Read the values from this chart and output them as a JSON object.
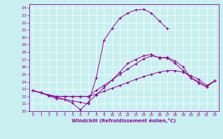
{
  "xlabel": "Windchill (Refroidissement éolien,°C)",
  "background_color": "#c8f0f0",
  "line_color": "#990099",
  "xlim": [
    -0.5,
    23.5
  ],
  "ylim": [
    10,
    24.5
  ],
  "xticks": [
    0,
    1,
    2,
    3,
    4,
    5,
    6,
    7,
    8,
    9,
    10,
    11,
    12,
    13,
    14,
    15,
    16,
    17,
    18,
    19,
    20,
    21,
    22,
    23
  ],
  "yticks": [
    10,
    11,
    12,
    13,
    14,
    15,
    16,
    17,
    18,
    19,
    20,
    21,
    22,
    23,
    24
  ],
  "s1_x": [
    0,
    1,
    2,
    3,
    4,
    5,
    6,
    7,
    8,
    9,
    10,
    11,
    12,
    13,
    14,
    15,
    16,
    17,
    18,
    19,
    20,
    21,
    22,
    23
  ],
  "s1_y": [
    12.8,
    12.5,
    12.1,
    11.7,
    11.6,
    11.1,
    10.2,
    11.2,
    12.2,
    13.2,
    14.2,
    15.3,
    16.5,
    17.0,
    17.5,
    17.7,
    17.2,
    17.3,
    16.8,
    16.0,
    14.5,
    14.0,
    13.3,
    14.1
  ],
  "s2_x": [
    0,
    1,
    2,
    3,
    4,
    5,
    6,
    7,
    8,
    9,
    10,
    11,
    12,
    13,
    14,
    15,
    16,
    17
  ],
  "s2_y": [
    12.8,
    12.5,
    12.1,
    11.9,
    11.6,
    11.4,
    11.2,
    11.0,
    14.5,
    19.6,
    21.2,
    22.6,
    23.3,
    23.7,
    23.8,
    23.3,
    22.2,
    21.2
  ],
  "s3_x": [
    0,
    1,
    2,
    3,
    4,
    5,
    6,
    7,
    8,
    9,
    10,
    11,
    12,
    13,
    14,
    15,
    16,
    17,
    18,
    19,
    20,
    21,
    22,
    23
  ],
  "s3_y": [
    12.8,
    12.5,
    12.2,
    12.0,
    12.0,
    12.0,
    12.0,
    12.0,
    12.8,
    13.5,
    14.2,
    15.0,
    15.7,
    16.4,
    17.1,
    17.5,
    17.3,
    17.2,
    16.5,
    15.5,
    14.5,
    13.8,
    13.3,
    14.1
  ],
  "s4_x": [
    0,
    1,
    2,
    3,
    4,
    5,
    6,
    7,
    8,
    9,
    10,
    11,
    12,
    13,
    14,
    15,
    16,
    17,
    18,
    19,
    20,
    21,
    22,
    23
  ],
  "s4_y": [
    12.8,
    12.5,
    12.2,
    12.0,
    12.0,
    12.0,
    12.0,
    12.0,
    12.3,
    12.7,
    13.1,
    13.5,
    13.9,
    14.3,
    14.7,
    15.0,
    15.3,
    15.5,
    15.5,
    15.3,
    14.8,
    14.3,
    13.5,
    14.1
  ]
}
